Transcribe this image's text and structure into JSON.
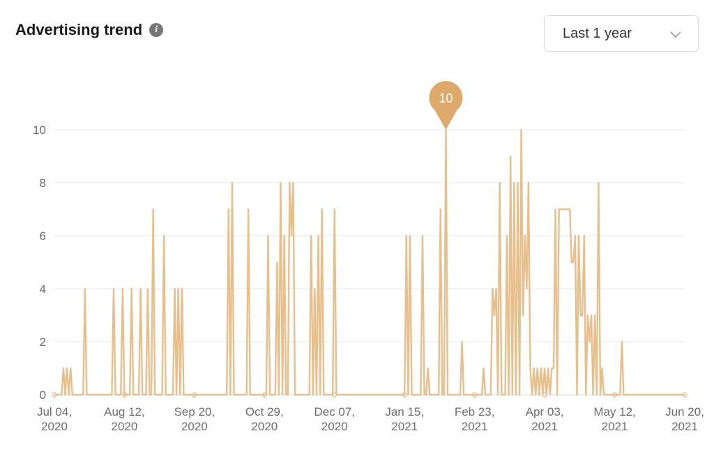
{
  "header": {
    "title": "Advertising trend",
    "info_icon": "info-icon"
  },
  "filter": {
    "selected": "Last 1 year",
    "icon": "chevron-down-icon"
  },
  "colors": {
    "line": "#e8be8a",
    "grid": "#e8e8ee",
    "marker": "#deaa6c"
  },
  "chart_data": {
    "type": "line",
    "ylim": [
      0,
      10
    ],
    "yticks": [
      0,
      2,
      4,
      6,
      8,
      10
    ],
    "x_start": "2020-07-04",
    "x_end": "2021-06-20",
    "xtick_labels": [
      [
        "Jul 04,",
        "2020"
      ],
      [
        "Aug 12,",
        "2020"
      ],
      [
        "Sep 20,",
        "2020"
      ],
      [
        "Oct 29,",
        "2020"
      ],
      [
        "Dec 07,",
        "2020"
      ],
      [
        "Jan 15,",
        "2021"
      ],
      [
        "Feb 23,",
        "2021"
      ],
      [
        "Apr 03,",
        "2021"
      ],
      [
        "May 12,",
        "2021"
      ],
      [
        "Jun 20,",
        "2021"
      ]
    ],
    "highlight": {
      "date": "2021-02-07",
      "value": 10,
      "label": "10"
    },
    "series": [
      {
        "values": [
          [
            "2020-07-04",
            0
          ],
          [
            "2020-07-08",
            0
          ],
          [
            "2020-07-09",
            1
          ],
          [
            "2020-07-10",
            0
          ],
          [
            "2020-07-11",
            1
          ],
          [
            "2020-07-12",
            0
          ],
          [
            "2020-07-13",
            1
          ],
          [
            "2020-07-14",
            0
          ],
          [
            "2020-07-20",
            0
          ],
          [
            "2020-07-21",
            4
          ],
          [
            "2020-07-22",
            0
          ],
          [
            "2020-08-05",
            0
          ],
          [
            "2020-08-06",
            4
          ],
          [
            "2020-08-07",
            0
          ],
          [
            "2020-08-10",
            0
          ],
          [
            "2020-08-11",
            4
          ],
          [
            "2020-08-12",
            0
          ],
          [
            "2020-08-15",
            0
          ],
          [
            "2020-08-16",
            4
          ],
          [
            "2020-08-17",
            0
          ],
          [
            "2020-08-20",
            0
          ],
          [
            "2020-08-21",
            4
          ],
          [
            "2020-08-22",
            0
          ],
          [
            "2020-08-24",
            0
          ],
          [
            "2020-08-25",
            4
          ],
          [
            "2020-08-26",
            0
          ],
          [
            "2020-08-27",
            0
          ],
          [
            "2020-08-28",
            7
          ],
          [
            "2020-08-29",
            0
          ],
          [
            "2020-09-02",
            0
          ],
          [
            "2020-09-03",
            6
          ],
          [
            "2020-09-04",
            0
          ],
          [
            "2020-09-08",
            0
          ],
          [
            "2020-09-09",
            4
          ],
          [
            "2020-09-10",
            0
          ],
          [
            "2020-09-11",
            4
          ],
          [
            "2020-09-12",
            0
          ],
          [
            "2020-09-13",
            4
          ],
          [
            "2020-09-14",
            0
          ],
          [
            "2020-10-08",
            0
          ],
          [
            "2020-10-09",
            7
          ],
          [
            "2020-10-10",
            0
          ],
          [
            "2020-10-11",
            8
          ],
          [
            "2020-10-12",
            0
          ],
          [
            "2020-10-19",
            0
          ],
          [
            "2020-10-20",
            7
          ],
          [
            "2020-10-21",
            0
          ],
          [
            "2020-10-30",
            0
          ],
          [
            "2020-10-31",
            6
          ],
          [
            "2020-11-01",
            0
          ],
          [
            "2020-11-04",
            0
          ],
          [
            "2020-11-05",
            5
          ],
          [
            "2020-11-06",
            0
          ],
          [
            "2020-11-07",
            8
          ],
          [
            "2020-11-08",
            0
          ],
          [
            "2020-11-09",
            6
          ],
          [
            "2020-11-10",
            0
          ],
          [
            "2020-11-11",
            0
          ],
          [
            "2020-11-12",
            8
          ],
          [
            "2020-11-13",
            6
          ],
          [
            "2020-11-14",
            8
          ],
          [
            "2020-11-15",
            0
          ],
          [
            "2020-11-23",
            0
          ],
          [
            "2020-11-24",
            6
          ],
          [
            "2020-11-25",
            0
          ],
          [
            "2020-11-26",
            4
          ],
          [
            "2020-11-27",
            0
          ],
          [
            "2020-11-28",
            6
          ],
          [
            "2020-11-29",
            0
          ],
          [
            "2020-11-30",
            7
          ],
          [
            "2020-12-01",
            0
          ],
          [
            "2020-12-06",
            0
          ],
          [
            "2020-12-07",
            7
          ],
          [
            "2020-12-08",
            0
          ],
          [
            "2021-01-15",
            0
          ],
          [
            "2021-01-16",
            6
          ],
          [
            "2021-01-17",
            0
          ],
          [
            "2021-01-18",
            6
          ],
          [
            "2021-01-19",
            0
          ],
          [
            "2021-01-24",
            0
          ],
          [
            "2021-01-25",
            6
          ],
          [
            "2021-01-26",
            0
          ],
          [
            "2021-01-27",
            0
          ],
          [
            "2021-01-28",
            1
          ],
          [
            "2021-01-29",
            0
          ],
          [
            "2021-02-03",
            0
          ],
          [
            "2021-02-04",
            7
          ],
          [
            "2021-02-05",
            0
          ],
          [
            "2021-02-06",
            0
          ],
          [
            "2021-02-07",
            10
          ],
          [
            "2021-02-08",
            0
          ],
          [
            "2021-02-15",
            0
          ],
          [
            "2021-02-16",
            2
          ],
          [
            "2021-02-17",
            0
          ],
          [
            "2021-02-27",
            0
          ],
          [
            "2021-02-28",
            1
          ],
          [
            "2021-03-01",
            0
          ],
          [
            "2021-03-04",
            0
          ],
          [
            "2021-03-05",
            4
          ],
          [
            "2021-03-06",
            3
          ],
          [
            "2021-03-07",
            4
          ],
          [
            "2021-03-08",
            0
          ],
          [
            "2021-03-09",
            8
          ],
          [
            "2021-03-10",
            0
          ],
          [
            "2021-03-12",
            0
          ],
          [
            "2021-03-13",
            6
          ],
          [
            "2021-03-14",
            0
          ],
          [
            "2021-03-15",
            9
          ],
          [
            "2021-03-16",
            0
          ],
          [
            "2021-03-17",
            8
          ],
          [
            "2021-03-18",
            0
          ],
          [
            "2021-03-19",
            8
          ],
          [
            "2021-03-20",
            0
          ],
          [
            "2021-03-21",
            10
          ],
          [
            "2021-03-22",
            3
          ],
          [
            "2021-03-23",
            6
          ],
          [
            "2021-03-24",
            4
          ],
          [
            "2021-03-25",
            8
          ],
          [
            "2021-03-26",
            1
          ],
          [
            "2021-03-27",
            0
          ],
          [
            "2021-03-28",
            1
          ],
          [
            "2021-03-29",
            0
          ],
          [
            "2021-03-30",
            1
          ],
          [
            "2021-03-31",
            0
          ],
          [
            "2021-04-01",
            1
          ],
          [
            "2021-04-02",
            0
          ],
          [
            "2021-04-03",
            1
          ],
          [
            "2021-04-04",
            0
          ],
          [
            "2021-04-05",
            1
          ],
          [
            "2021-04-06",
            0
          ],
          [
            "2021-04-07",
            1
          ],
          [
            "2021-04-08",
            1
          ],
          [
            "2021-04-09",
            7
          ],
          [
            "2021-04-10",
            0
          ],
          [
            "2021-04-11",
            7
          ],
          [
            "2021-04-12",
            7
          ],
          [
            "2021-04-13",
            7
          ],
          [
            "2021-04-14",
            7
          ],
          [
            "2021-04-15",
            7
          ],
          [
            "2021-04-16",
            7
          ],
          [
            "2021-04-17",
            7
          ],
          [
            "2021-04-18",
            5
          ],
          [
            "2021-04-19",
            5
          ],
          [
            "2021-04-20",
            6
          ],
          [
            "2021-04-21",
            0
          ],
          [
            "2021-04-22",
            6
          ],
          [
            "2021-04-23",
            3
          ],
          [
            "2021-04-24",
            3
          ],
          [
            "2021-04-25",
            6
          ],
          [
            "2021-04-26",
            0
          ],
          [
            "2021-04-27",
            3
          ],
          [
            "2021-04-28",
            2
          ],
          [
            "2021-04-29",
            3
          ],
          [
            "2021-04-30",
            0
          ],
          [
            "2021-05-01",
            3
          ],
          [
            "2021-05-02",
            0
          ],
          [
            "2021-05-03",
            8
          ],
          [
            "2021-05-04",
            0
          ],
          [
            "2021-05-05",
            1
          ],
          [
            "2021-05-06",
            0
          ],
          [
            "2021-05-15",
            0
          ],
          [
            "2021-05-16",
            2
          ],
          [
            "2021-05-17",
            0
          ],
          [
            "2021-06-20",
            0
          ]
        ]
      }
    ]
  }
}
